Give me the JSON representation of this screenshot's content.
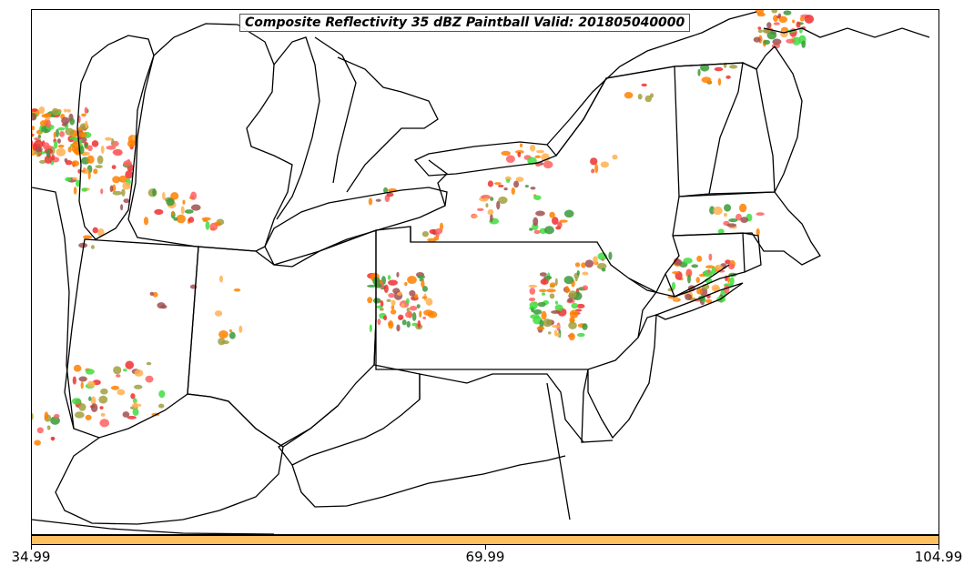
{
  "title": "Composite Reflectivity 35 dBZ Paintball Valid: 201805040000",
  "colorbar": {
    "color": "#ffc060",
    "ticks": [
      "34.99",
      "69.99",
      "104.99"
    ]
  },
  "colors": {
    "orange": "#ff8000",
    "light_orange": "#ffb050",
    "red": "#ee3030",
    "green": "#40dd40",
    "dark_green": "#3a9a3a",
    "olive": "#a0a040",
    "brown": "#a05050",
    "salmon": "#ff6060"
  }
}
